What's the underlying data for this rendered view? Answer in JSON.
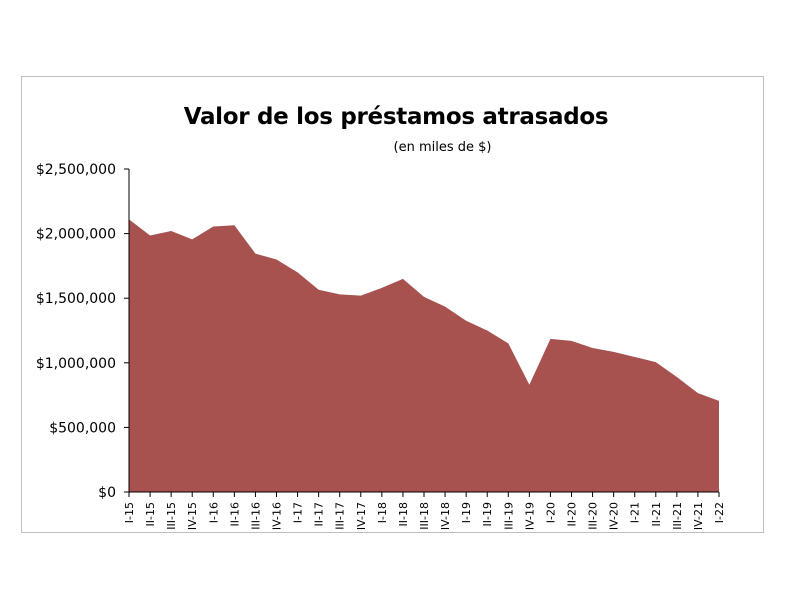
{
  "chart_data": {
    "type": "area",
    "title": "Valor de los préstamos atrasados",
    "subtitle": "(en miles de $)",
    "xlabel": "",
    "ylabel": "",
    "ylim": [
      0,
      2500000
    ],
    "yticks": [
      "$0",
      "$500,000",
      "$1,000,000",
      "$1,500,000",
      "$2,000,000",
      "$2,500,000"
    ],
    "ytick_values": [
      0,
      500000,
      1000000,
      1500000,
      2000000,
      2500000
    ],
    "grid": false,
    "legend": "none",
    "categories": [
      "I-15",
      "II-15",
      "III-15",
      "IV-15",
      "I-16",
      "II-16",
      "III-16",
      "IV-16",
      "I-17",
      "II-17",
      "III-17",
      "IV-17",
      "I-18",
      "II-18",
      "III-18",
      "IV-18",
      "I-19",
      "II-19",
      "III-19",
      "IV-19",
      "I-20",
      "II-20",
      "III-20",
      "IV-20",
      "I-21",
      "II-21",
      "III-21",
      "IV-21",
      "I-22"
    ],
    "values": [
      2110000,
      1985000,
      2020000,
      1955000,
      2055000,
      2065000,
      1845000,
      1800000,
      1700000,
      1565000,
      1530000,
      1520000,
      1580000,
      1650000,
      1510000,
      1435000,
      1325000,
      1250000,
      1150000,
      830000,
      1185000,
      1170000,
      1115000,
      1085000,
      1045000,
      1005000,
      890000,
      765000,
      705000
    ],
    "colors": {
      "area": "#a85250",
      "axis": "#000000"
    }
  }
}
